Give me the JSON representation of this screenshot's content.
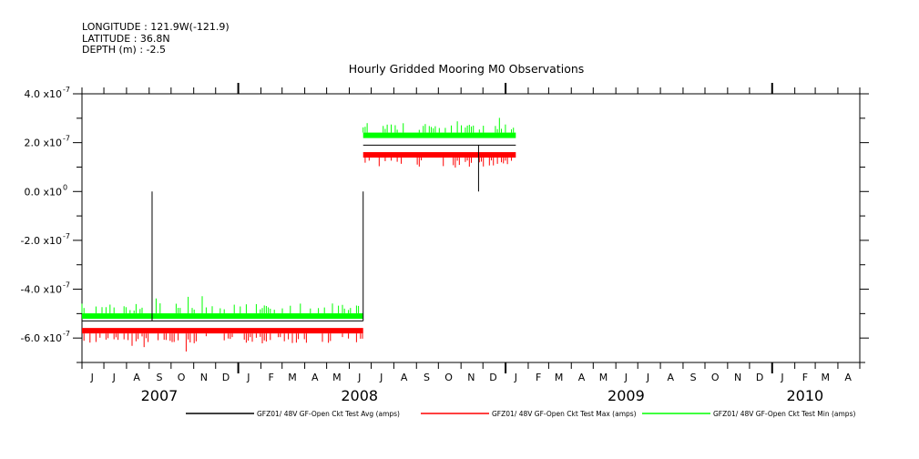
{
  "header": {
    "longitude": "LONGITUDE : 121.9W(-121.9)",
    "latitude": "LATITUDE : 36.8N",
    "depth": "DEPTH (m) : -2.5"
  },
  "chart_data": {
    "type": "line",
    "title": "Hourly Gridded Mooring M0 Observations",
    "ylabel": "amps",
    "ylim": [
      -7e-07,
      4e-07
    ],
    "x_range": [
      "2007-06-01",
      "2010-05-01"
    ],
    "y_ticks": [
      {
        "value": 4e-07,
        "label": "4.0 x10",
        "exp": "-7"
      },
      {
        "value": 2e-07,
        "label": "2.0 x10",
        "exp": "-7"
      },
      {
        "value": 0,
        "label": "0.0 x10",
        "exp": "0"
      },
      {
        "value": -2e-07,
        "label": "-2.0 x10",
        "exp": "-7"
      },
      {
        "value": -4e-07,
        "label": "-4.0 x10",
        "exp": "-7"
      },
      {
        "value": -6e-07,
        "label": "-6.0 x10",
        "exp": "-7"
      }
    ],
    "month_labels": [
      "J",
      "J",
      "A",
      "S",
      "O",
      "N",
      "D",
      "J",
      "F",
      "M",
      "A",
      "M",
      "J",
      "J",
      "A",
      "S",
      "O",
      "N",
      "D",
      "J",
      "F",
      "M",
      "A",
      "M",
      "J",
      "J",
      "A",
      "S",
      "O",
      "N",
      "D",
      "J",
      "F",
      "M",
      "A"
    ],
    "year_labels": [
      {
        "label": "2007",
        "month_index": 3
      },
      {
        "label": "2008",
        "month_index": 12
      },
      {
        "label": "2009",
        "month_index": 24
      },
      {
        "label": "2010",
        "month_index": 32
      }
    ],
    "series": [
      {
        "name": "GFZ01/ 48V GF-Open Ckt Test Avg (amps)",
        "color": "#000000",
        "segments": [
          {
            "start": "2007-06-01",
            "end": "2008-06-20",
            "value": -5.3e-07
          },
          {
            "start": "2008-06-20",
            "end": "2009-01-15",
            "value": 1.9e-07
          }
        ],
        "spikes": [
          {
            "date": "2007-09-05",
            "value": 0
          },
          {
            "date": "2008-06-20",
            "value": 0
          },
          {
            "date": "2008-11-25",
            "value": 0
          }
        ]
      },
      {
        "name": "GFZ01/ 48V GF-Open Ckt Test Max (amps)",
        "color": "#ff0000",
        "segments": [
          {
            "start": "2007-06-01",
            "end": "2008-06-20",
            "value": -5.7e-07
          },
          {
            "start": "2008-06-20",
            "end": "2009-01-15",
            "value": 1.5e-07
          }
        ]
      },
      {
        "name": "GFZ01/ 48V GF-Open Ckt Test Min (amps)",
        "color": "#00ff00",
        "segments": [
          {
            "start": "2007-06-01",
            "end": "2008-06-20",
            "value": -5.1e-07
          },
          {
            "start": "2008-06-20",
            "end": "2009-01-15",
            "value": 2.3e-07
          }
        ]
      }
    ]
  }
}
